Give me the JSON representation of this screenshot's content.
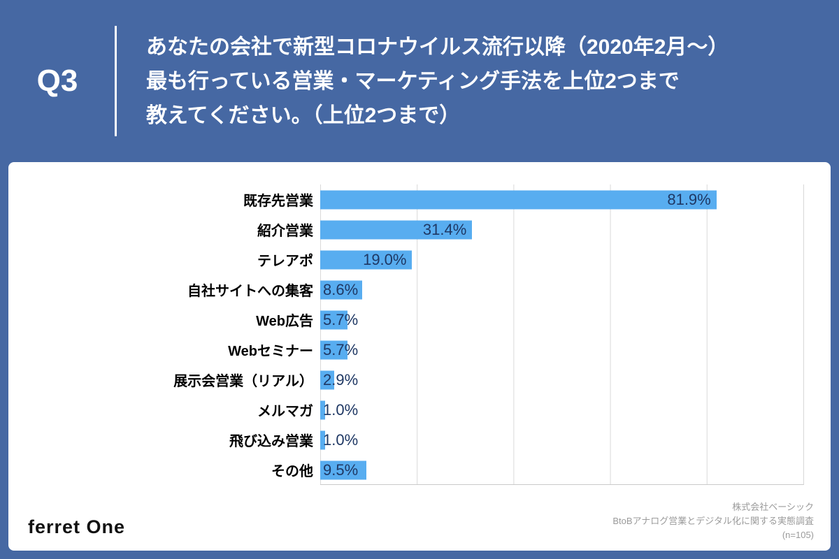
{
  "question": {
    "number": "Q3",
    "lines": [
      "あなたの会社で新型コロナウイルス流行以降（2020年2月～）",
      "最も行っている営業・マーケティング手法を上位2つまで",
      "教えてください。（上位2つまで）"
    ]
  },
  "chart_data": {
    "type": "bar",
    "orientation": "horizontal",
    "title": "",
    "categories": [
      "既存先営業",
      "紹介営業",
      "テレアポ",
      "自社サイトへの集客",
      "Web広告",
      "Webセミナー",
      "展示会営業（リアル）",
      "メルマガ",
      "飛び込み営業",
      "その他"
    ],
    "values": [
      81.9,
      31.4,
      19.0,
      8.6,
      5.7,
      5.7,
      2.9,
      1.0,
      1.0,
      9.5
    ],
    "labels": [
      "81.9%",
      "31.4%",
      "19.0%",
      "8.6%",
      "5.7%",
      "5.7%",
      "2.9%",
      "1.0%",
      "1.0%",
      "9.5%"
    ],
    "xlim": [
      0,
      100
    ],
    "grid": true,
    "legend": "none",
    "bar_color": "#58ADF0",
    "label_color": "#1F3864"
  },
  "footer": {
    "logo": "ferret One",
    "source_lines": [
      "株式会社ベーシック",
      "BtoBアナログ営業とデジタル化に関する実態調査",
      "(n=105)"
    ]
  },
  "colors": {
    "background": "#4668A3",
    "card": "#FFFFFF",
    "bar": "#58ADF0",
    "value_label": "#1F3864",
    "gridline": "#D9D9D9"
  }
}
